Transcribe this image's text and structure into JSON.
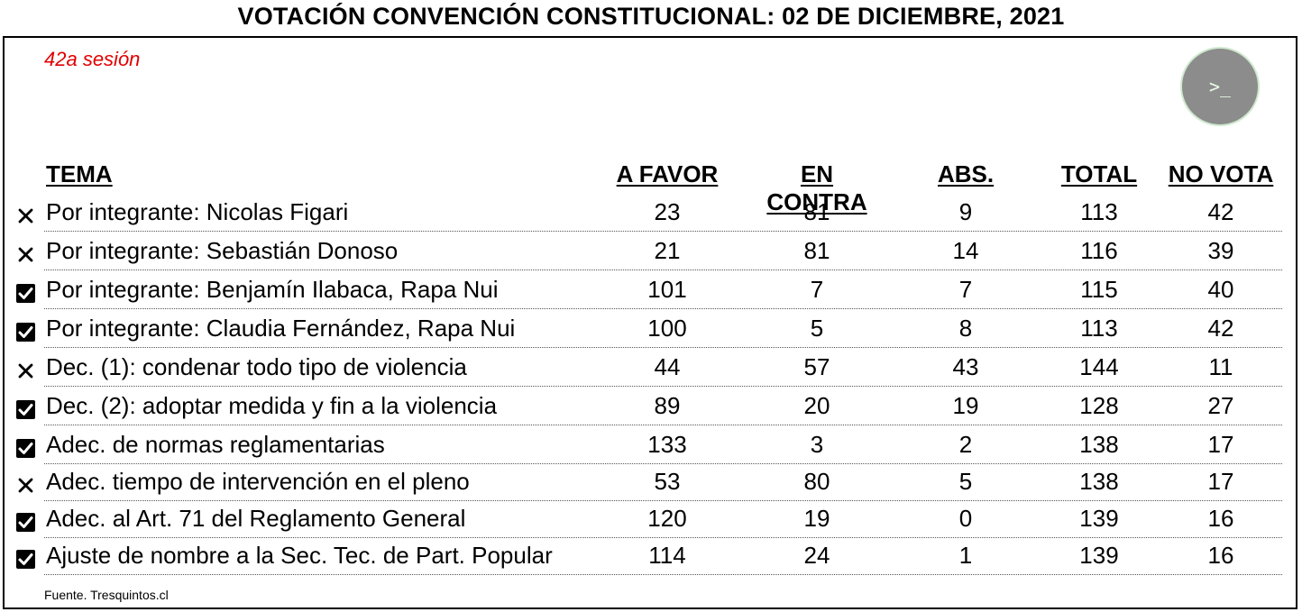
{
  "title": "VOTACIÓN CONVENCIÓN CONSTITUCIONAL: 02 DE DICIEMBRE, 2021",
  "session": "42a sesión",
  "badge_icon": "terminal-icon",
  "badge_glyph": ">_",
  "headers": {
    "tema": "TEMA",
    "a_favor": "A FAVOR",
    "en_contra": "EN CONTRA",
    "abs": "ABS.",
    "total": "TOTAL",
    "no_vota": "NO VOTA"
  },
  "rows": [
    {
      "status": "rejected",
      "tema": "Por integrante: Nicolas Figari",
      "a_favor": "23",
      "en_contra": "81",
      "abs": "9",
      "total": "113",
      "no_vota": "42"
    },
    {
      "status": "rejected",
      "tema": "Por integrante: Sebastián Donoso",
      "a_favor": "21",
      "en_contra": "81",
      "abs": "14",
      "total": "116",
      "no_vota": "39"
    },
    {
      "status": "approved",
      "tema": "Por integrante: Benjamín Ilabaca, Rapa Nui",
      "a_favor": "101",
      "en_contra": "7",
      "abs": "7",
      "total": "115",
      "no_vota": "40"
    },
    {
      "status": "approved",
      "tema": "Por integrante: Claudia Fernández, Rapa Nui",
      "a_favor": "100",
      "en_contra": "5",
      "abs": "8",
      "total": "113",
      "no_vota": "42"
    },
    {
      "status": "rejected",
      "tema": "Dec. (1): condenar todo tipo de violencia",
      "a_favor": "44",
      "en_contra": "57",
      "abs": "43",
      "total": "144",
      "no_vota": "11"
    },
    {
      "status": "approved",
      "tema": "Dec. (2): adoptar medida y fin a la violencia",
      "a_favor": "89",
      "en_contra": "20",
      "abs": "19",
      "total": "128",
      "no_vota": "27"
    },
    {
      "status": "approved",
      "tema": "Adec. de normas reglamentarias",
      "a_favor": "133",
      "en_contra": "3",
      "abs": "2",
      "total": "138",
      "no_vota": "17"
    },
    {
      "status": "rejected",
      "tema": "Adec. tiempo de intervención en el pleno",
      "a_favor": "53",
      "en_contra": "80",
      "abs": "5",
      "total": "138",
      "no_vota": "17"
    },
    {
      "status": "approved",
      "tema": "Adec. al Art. 71 del Reglamento General",
      "a_favor": "120",
      "en_contra": "19",
      "abs": "0",
      "total": "139",
      "no_vota": "16"
    },
    {
      "status": "approved",
      "tema": "Ajuste de nombre a la Sec. Tec. de Part. Popular",
      "a_favor": "114",
      "en_contra": "24",
      "abs": "1",
      "total": "139",
      "no_vota": "16"
    }
  ],
  "source": "Fuente. Tresquintos.cl"
}
